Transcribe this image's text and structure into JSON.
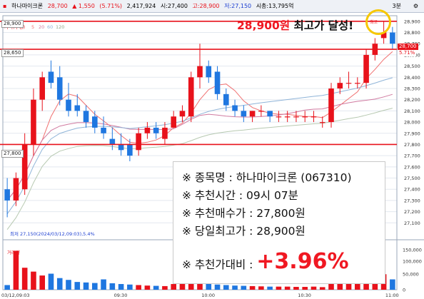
{
  "topbar": {
    "name": "하나마이크론",
    "price": "28,700",
    "change": "▲ 1,550",
    "change_pct": "(5.71%)",
    "volume": "2,417,924",
    "open": "시:27,400",
    "high": "고:28,900",
    "low": "저:27,150",
    "mktcap": "시총:13,795억",
    "period": "3분"
  },
  "legend": {
    "price_label": "가격(수정)",
    "ma_labels": [
      "5",
      "20",
      "60",
      "120"
    ],
    "volume_label": "거래량"
  },
  "callout": {
    "text_price": "28,900원",
    "text_rest": "최고가 달성!"
  },
  "hlines": [
    "28,900",
    "28,650",
    "27,800"
  ],
  "low_note": "최저 27,150(2024/03/12,09:03),5.4%",
  "price_tag": "28,700",
  "pct_tag": "5.71%",
  "high_tag": "최고",
  "info": {
    "l1_label": "※ 종목명 : ",
    "l1_value": "하나마이크론 (067310)",
    "l2_label": "※ 추천시간 : ",
    "l2_value": "09시 07분",
    "l3_label": "※ 추천매수가 : ",
    "l3_value": "27,800원",
    "l4_label": "※ 당일최고가 : ",
    "l4_value": "28,900원",
    "l5_label": "※ 추천가대비 : ",
    "l5_value": "+3.96%"
  },
  "y_ticks": [
    "28,900",
    "28,800",
    "28,700",
    "28,600",
    "28,500",
    "28,400",
    "28,300",
    "28,200",
    "28,100",
    "28,000",
    "27,900",
    "27,800",
    "27,700",
    "27,600",
    "27,500",
    "27,400",
    "27,300",
    "27,200",
    "27,100"
  ],
  "vol_ticks": [
    "150,000",
    "100,000",
    "50,000",
    "0"
  ],
  "x_ticks": [
    "03/12,09:03",
    "09:30",
    "10:00",
    "10:30",
    "11:00"
  ],
  "colors": {
    "up": "#e8121b",
    "down": "#1f77e0",
    "ma5": "#f07070",
    "ma20": "#d07aa0",
    "ma60": "#8fb4d8",
    "ma120": "#b7c9b1"
  },
  "chart_data": {
    "type": "candlestick",
    "ylim": [
      27000,
      28950
    ],
    "candles": [
      {
        "o": 27400,
        "h": 27500,
        "l": 27150,
        "c": 27300
      },
      {
        "o": 27300,
        "h": 27550,
        "l": 27250,
        "c": 27500
      },
      {
        "o": 27400,
        "h": 27900,
        "l": 27350,
        "c": 27800
      },
      {
        "o": 27800,
        "h": 28300,
        "l": 27700,
        "c": 28200
      },
      {
        "o": 28200,
        "h": 28450,
        "l": 28100,
        "c": 28400
      },
      {
        "o": 28450,
        "h": 28550,
        "l": 28300,
        "c": 28350
      },
      {
        "o": 28400,
        "h": 28500,
        "l": 28150,
        "c": 28200
      },
      {
        "o": 28200,
        "h": 28350,
        "l": 28050,
        "c": 28100
      },
      {
        "o": 28150,
        "h": 28250,
        "l": 28050,
        "c": 28100
      },
      {
        "o": 28100,
        "h": 28150,
        "l": 27950,
        "c": 28000
      },
      {
        "o": 28050,
        "h": 28100,
        "l": 27900,
        "c": 27950
      },
      {
        "o": 27950,
        "h": 28050,
        "l": 27850,
        "c": 27900
      },
      {
        "o": 27850,
        "h": 27950,
        "l": 27750,
        "c": 27800
      },
      {
        "o": 27800,
        "h": 27900,
        "l": 27700,
        "c": 27750
      },
      {
        "o": 27800,
        "h": 27850,
        "l": 27650,
        "c": 27700
      },
      {
        "o": 27750,
        "h": 27950,
        "l": 27700,
        "c": 27900
      },
      {
        "o": 27900,
        "h": 28000,
        "l": 27850,
        "c": 27950
      },
      {
        "o": 27950,
        "h": 28000,
        "l": 27850,
        "c": 27900
      },
      {
        "o": 27850,
        "h": 28000,
        "l": 27800,
        "c": 27950
      },
      {
        "o": 27950,
        "h": 28100,
        "l": 27950,
        "c": 28050
      },
      {
        "o": 28050,
        "h": 28150,
        "l": 28000,
        "c": 28100
      },
      {
        "o": 28050,
        "h": 28450,
        "l": 28000,
        "c": 28400
      },
      {
        "o": 28400,
        "h": 28700,
        "l": 28300,
        "c": 28500
      },
      {
        "o": 28500,
        "h": 28550,
        "l": 28350,
        "c": 28400
      },
      {
        "o": 28450,
        "h": 28500,
        "l": 28200,
        "c": 28250
      },
      {
        "o": 28250,
        "h": 28300,
        "l": 28100,
        "c": 28150
      },
      {
        "o": 28150,
        "h": 28200,
        "l": 28050,
        "c": 28100
      },
      {
        "o": 28100,
        "h": 28150,
        "l": 28000,
        "c": 28050
      },
      {
        "o": 28050,
        "h": 28100,
        "l": 28000,
        "c": 28100
      },
      {
        "o": 28100,
        "h": 28150,
        "l": 28050,
        "c": 28100
      },
      {
        "o": 28100,
        "h": 28100,
        "l": 28000,
        "c": 28050
      },
      {
        "o": 28050,
        "h": 28100,
        "l": 28000,
        "c": 28050
      },
      {
        "o": 28050,
        "h": 28100,
        "l": 28000,
        "c": 28050
      },
      {
        "o": 28050,
        "h": 28100,
        "l": 28000,
        "c": 28050
      },
      {
        "o": 28050,
        "h": 28100,
        "l": 28000,
        "c": 28050
      },
      {
        "o": 28050,
        "h": 28100,
        "l": 28000,
        "c": 28050
      },
      {
        "o": 28000,
        "h": 28050,
        "l": 27950,
        "c": 28000
      },
      {
        "o": 28000,
        "h": 28350,
        "l": 27950,
        "c": 28300
      },
      {
        "o": 28300,
        "h": 28400,
        "l": 28250,
        "c": 28350
      },
      {
        "o": 28350,
        "h": 28450,
        "l": 28300,
        "c": 28350
      },
      {
        "o": 28350,
        "h": 28400,
        "l": 28300,
        "c": 28350
      },
      {
        "o": 28350,
        "h": 28650,
        "l": 28300,
        "c": 28600
      },
      {
        "o": 28600,
        "h": 28750,
        "l": 28550,
        "c": 28700
      },
      {
        "o": 28750,
        "h": 28900,
        "l": 28700,
        "c": 28800
      },
      {
        "o": 28800,
        "h": 28850,
        "l": 28650,
        "c": 28700
      }
    ],
    "volume": [
      18000,
      150000,
      85000,
      70000,
      55000,
      62000,
      45000,
      38000,
      30000,
      28000,
      26000,
      40000,
      25000,
      22000,
      20000,
      18000,
      16000,
      15000,
      14000,
      22000,
      30000,
      42000,
      38000,
      24000,
      20000,
      18000,
      16000,
      15000,
      14000,
      13000,
      12000,
      12000,
      12000,
      11000,
      11000,
      12000,
      10000,
      30000,
      35000,
      25000,
      28000,
      55000,
      45000,
      60000,
      40000
    ]
  }
}
